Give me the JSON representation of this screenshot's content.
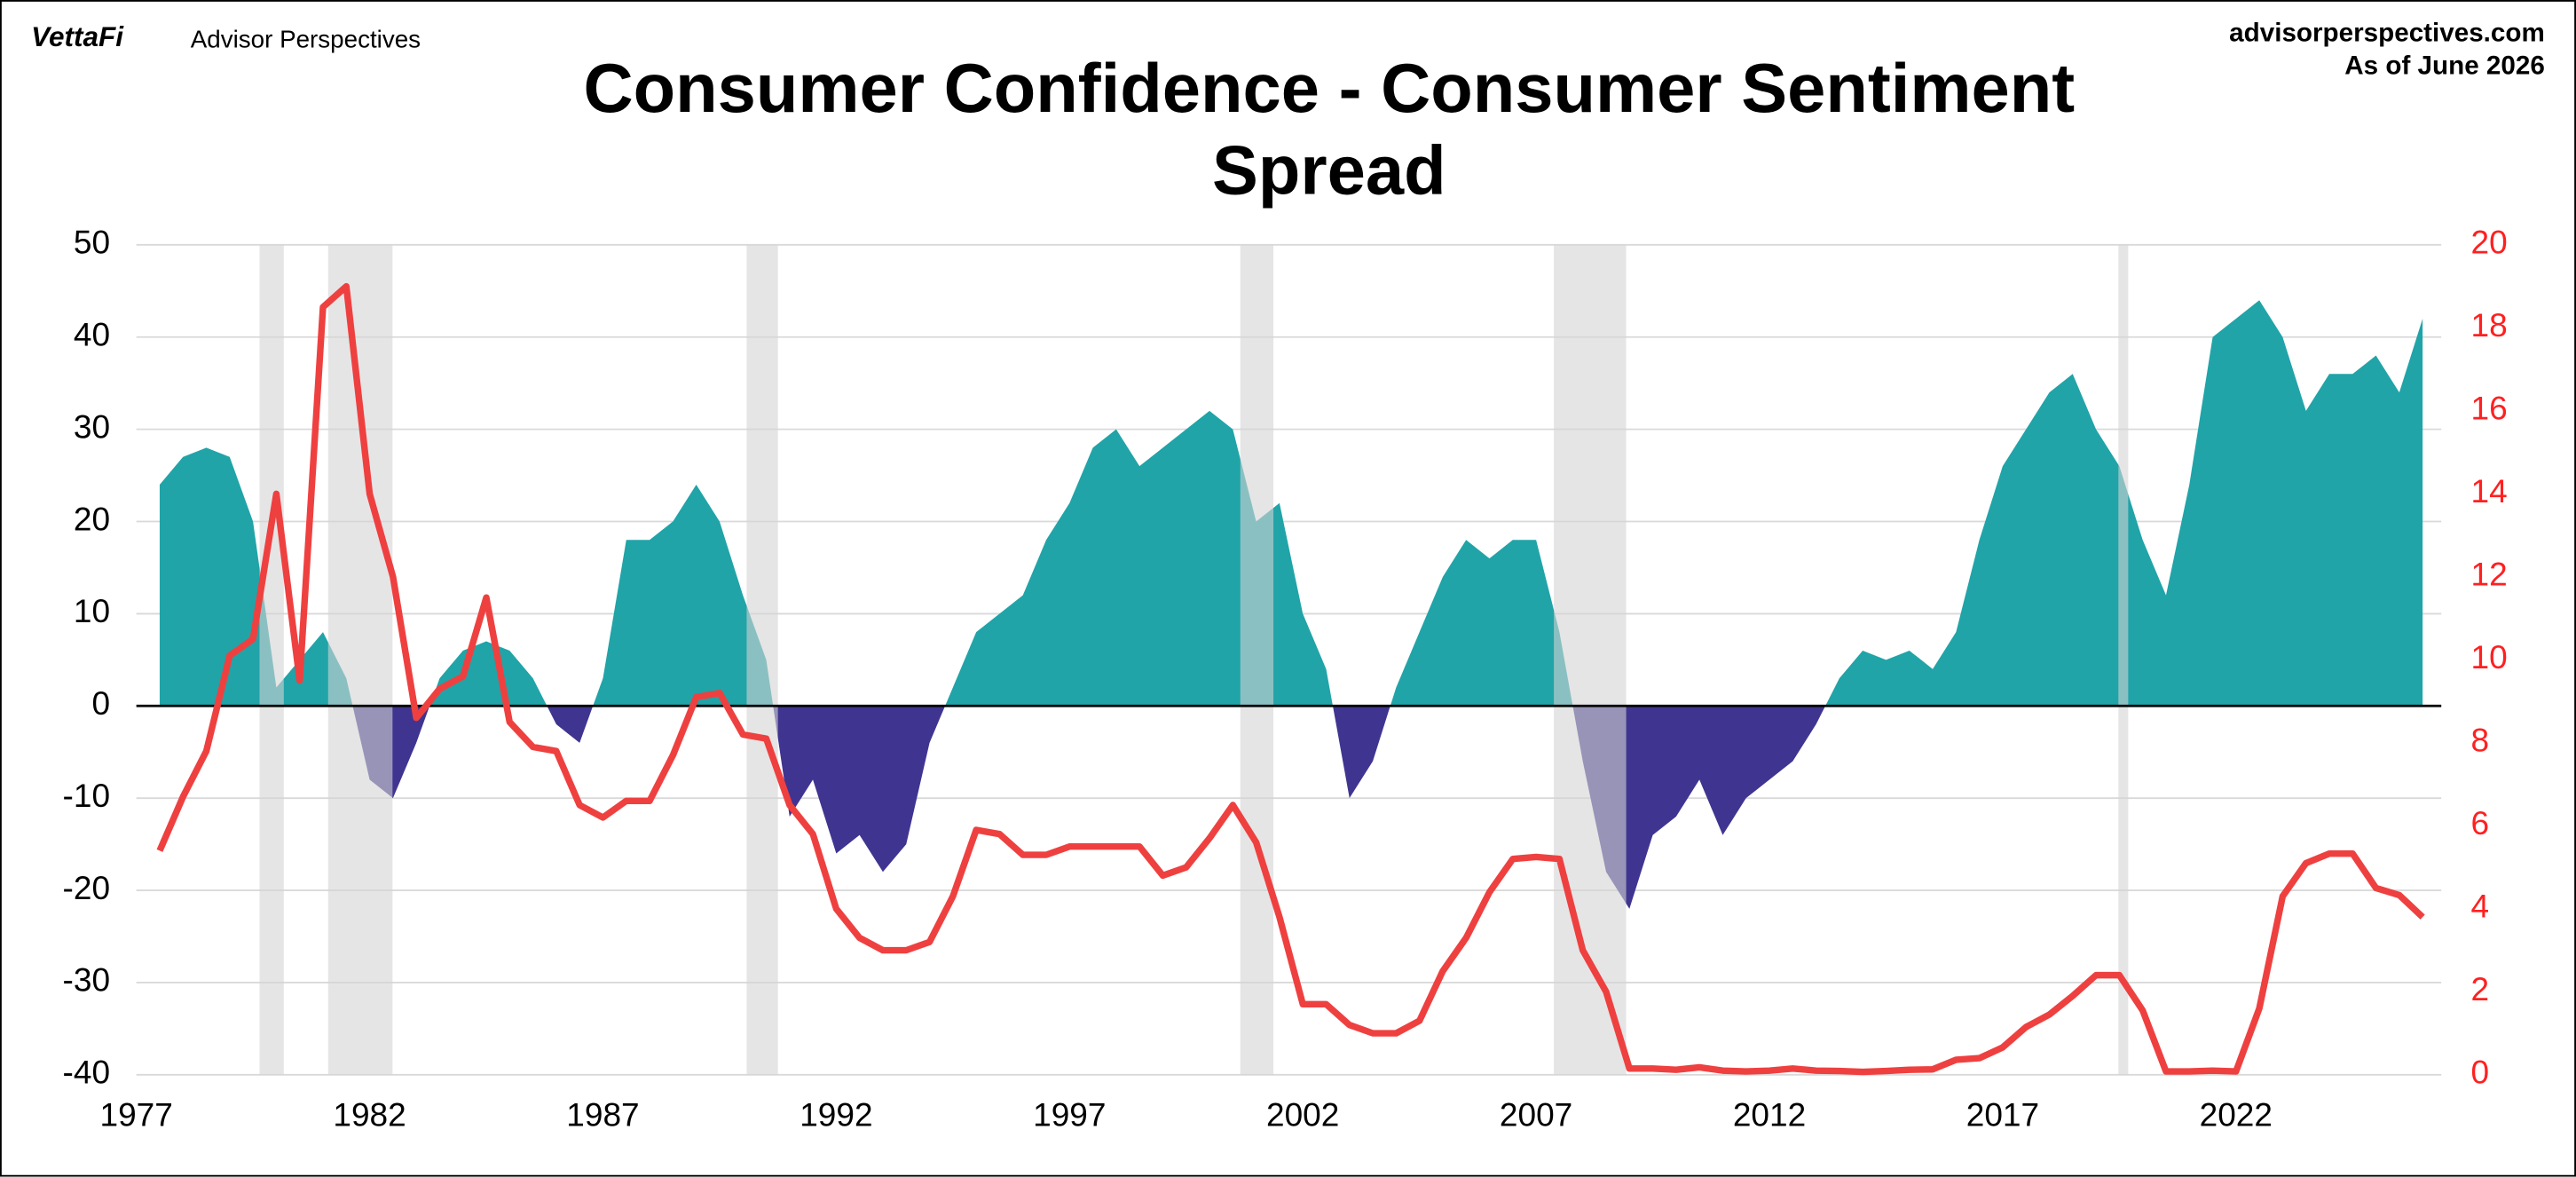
{
  "header": {
    "brand": "VettaFi",
    "brand_sub": "Advisor Perspectives",
    "site": "advisorperspectives.com",
    "as_of": "As of June 2026"
  },
  "chart_data": {
    "type": "area_line",
    "title": "Consumer Confidence - Consumer Sentiment Spread",
    "x": [
      1977.5,
      1978,
      1978.5,
      1979,
      1979.5,
      1980,
      1980.5,
      1981,
      1981.5,
      1982,
      1982.5,
      1983,
      1983.5,
      1984,
      1984.5,
      1985,
      1985.5,
      1986,
      1986.5,
      1987,
      1987.5,
      1988,
      1988.5,
      1989,
      1989.5,
      1990,
      1990.5,
      1991,
      1991.5,
      1992,
      1992.5,
      1993,
      1993.5,
      1994,
      1994.5,
      1995,
      1995.5,
      1996,
      1996.5,
      1997,
      1997.5,
      1998,
      1998.5,
      1999,
      1999.5,
      2000,
      2000.5,
      2001,
      2001.5,
      2002,
      2002.5,
      2003,
      2003.5,
      2004,
      2004.5,
      2005,
      2005.5,
      2006,
      2006.5,
      2007,
      2007.5,
      2008,
      2008.5,
      2009,
      2009.5,
      2010,
      2010.5,
      2011,
      2011.5,
      2012,
      2012.5,
      2013,
      2013.5,
      2014,
      2014.5,
      2015,
      2015.5,
      2016,
      2016.5,
      2017,
      2017.5,
      2018,
      2018.5,
      2019,
      2019.5,
      2020,
      2020.5,
      2021,
      2021.5,
      2022,
      2022.5,
      2023,
      2023.5,
      2024,
      2024.5,
      2025,
      2025.5,
      2026
    ],
    "series": [
      {
        "color": "#20a4a8",
        "negative_color": "#3f3590",
        "values": [
          24,
          27,
          28,
          27,
          20,
          2,
          5,
          8,
          3,
          -8,
          -10,
          -4,
          3,
          6,
          7,
          6,
          3,
          -2,
          -4,
          3,
          18,
          18,
          20,
          24,
          20,
          12,
          5,
          -12,
          -8,
          -16,
          -14,
          -18,
          -15,
          -4,
          2,
          8,
          10,
          12,
          18,
          22,
          28,
          30,
          26,
          28,
          30,
          32,
          30,
          20,
          22,
          10,
          4,
          -10,
          -6,
          2,
          8,
          14,
          18,
          16,
          18,
          18,
          8,
          -6,
          -18,
          -22,
          -14,
          -12,
          -8,
          -14,
          -10,
          -8,
          -6,
          -2,
          3,
          6,
          5,
          6,
          4,
          8,
          18,
          26,
          30,
          34,
          36,
          30,
          26,
          18,
          12,
          24,
          40,
          42,
          44,
          40,
          32,
          36,
          36,
          38,
          34,
          42
        ]
      },
      {
        "color": "#ef4040",
        "axis": "y2",
        "values": [
          5.4,
          6.7,
          7.8,
          10.1,
          10.5,
          14,
          9.5,
          18.5,
          19,
          14,
          12,
          8.6,
          9.3,
          9.6,
          11.5,
          8.5,
          7.9,
          7.8,
          6.5,
          6.2,
          6.6,
          6.6,
          7.7,
          9.1,
          9.2,
          8.2,
          8.1,
          6.5,
          5.8,
          4.0,
          3.3,
          3.0,
          3.0,
          3.2,
          4.3,
          5.9,
          5.8,
          5.3,
          5.3,
          5.5,
          5.5,
          5.5,
          5.5,
          4.8,
          5.0,
          5.7,
          6.5,
          5.6,
          3.8,
          1.7,
          1.7,
          1.2,
          1.0,
          1.0,
          1.3,
          2.5,
          3.3,
          4.4,
          5.2,
          5.25,
          5.2,
          3.0,
          2.0,
          0.15,
          0.15,
          0.12,
          0.18,
          0.1,
          0.08,
          0.1,
          0.15,
          0.1,
          0.09,
          0.07,
          0.09,
          0.12,
          0.13,
          0.36,
          0.4,
          0.66,
          1.15,
          1.45,
          1.9,
          2.4,
          2.4,
          1.55,
          0.08,
          0.08,
          0.1,
          0.08,
          1.6,
          4.3,
          5.1,
          5.33,
          5.33,
          4.5,
          4.33,
          3.8
        ]
      }
    ],
    "recessions": [
      [
        1979.64,
        1980.16
      ],
      [
        1981.11,
        1982.49
      ],
      [
        1990.08,
        1990.75
      ],
      [
        2000.66,
        2001.37
      ],
      [
        2007.38,
        2008.93
      ],
      [
        2019.48,
        2019.69
      ]
    ],
    "recession_color": "#d4d4d4",
    "xlim": [
      1977,
      2026.4
    ],
    "xticks": [
      1977,
      1982,
      1987,
      1992,
      1997,
      2002,
      2007,
      2012,
      2017,
      2022
    ],
    "ylim": [
      -40,
      50
    ],
    "yticks": [
      -40,
      -30,
      -20,
      -10,
      0,
      10,
      20,
      30,
      40,
      50
    ],
    "y2lim": [
      0,
      20
    ],
    "y2ticks": [
      0,
      2,
      4,
      6,
      8,
      10,
      12,
      14,
      16,
      18,
      20
    ],
    "y2_color": "#ff2020",
    "grid": true
  }
}
